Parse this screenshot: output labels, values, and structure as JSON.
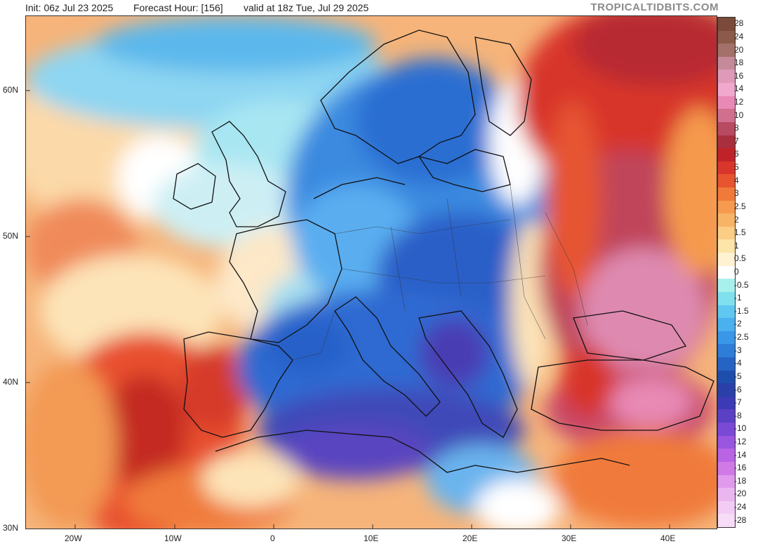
{
  "header": {
    "init": "Init: 06z Jul 23 2025",
    "forecast_hour": "Forecast Hour: [156]",
    "valid": "valid at 18z Tue, Jul 29 2025",
    "brand": "TROPICALTIDBITS.COM"
  },
  "latitude_labels": [
    "60N",
    "50N",
    "40N",
    "30N"
  ],
  "longitude_labels": [
    "20W",
    "10W",
    "0",
    "10E",
    "20E",
    "30E",
    "40E"
  ],
  "legend": {
    "levels": [
      {
        "label": "28",
        "color": "#7a4a3a"
      },
      {
        "label": "24",
        "color": "#8c5a4a"
      },
      {
        "label": "20",
        "color": "#a3706a"
      },
      {
        "label": "18",
        "color": "#c48a9a"
      },
      {
        "label": "16",
        "color": "#de9ab8"
      },
      {
        "label": "14",
        "color": "#f0a8cc"
      },
      {
        "label": "12",
        "color": "#e88ab5"
      },
      {
        "label": "10",
        "color": "#d0708e"
      },
      {
        "label": "8",
        "color": "#b84a62"
      },
      {
        "label": "7",
        "color": "#a8303e"
      },
      {
        "label": "6",
        "color": "#c0222a"
      },
      {
        "label": "5",
        "color": "#d8362c"
      },
      {
        "label": "4",
        "color": "#e65430"
      },
      {
        "label": "3",
        "color": "#f07a3a"
      },
      {
        "label": "2.5",
        "color": "#f59a4e"
      },
      {
        "label": "2",
        "color": "#f8b466"
      },
      {
        "label": "1.5",
        "color": "#fbcd85"
      },
      {
        "label": "1",
        "color": "#fde4a8"
      },
      {
        "label": "0.5",
        "color": "#fef2d2"
      },
      {
        "label": "0",
        "color": "#ffffff"
      },
      {
        "label": "-0.5",
        "color": "#a8f0ec"
      },
      {
        "label": "-1",
        "color": "#80e0ee"
      },
      {
        "label": "-1.5",
        "color": "#60c8f0"
      },
      {
        "label": "-2",
        "color": "#4ab0ee"
      },
      {
        "label": "-2.5",
        "color": "#3a96e6"
      },
      {
        "label": "-3",
        "color": "#2e7ed8"
      },
      {
        "label": "-4",
        "color": "#2664c4"
      },
      {
        "label": "-5",
        "color": "#1e4eac"
      },
      {
        "label": "-6",
        "color": "#2a40a8"
      },
      {
        "label": "-7",
        "color": "#3c3ab4"
      },
      {
        "label": "-8",
        "color": "#5a40c4"
      },
      {
        "label": "-10",
        "color": "#7a4ad4"
      },
      {
        "label": "-12",
        "color": "#9a56de"
      },
      {
        "label": "-14",
        "color": "#b864e4"
      },
      {
        "label": "-16",
        "color": "#d07ae6"
      },
      {
        "label": "-18",
        "color": "#e09aec"
      },
      {
        "label": "-20",
        "color": "#ebb6f0"
      },
      {
        "label": "-24",
        "color": "#f2ccf4"
      },
      {
        "label": "-28",
        "color": "#f6dcf6"
      }
    ]
  }
}
